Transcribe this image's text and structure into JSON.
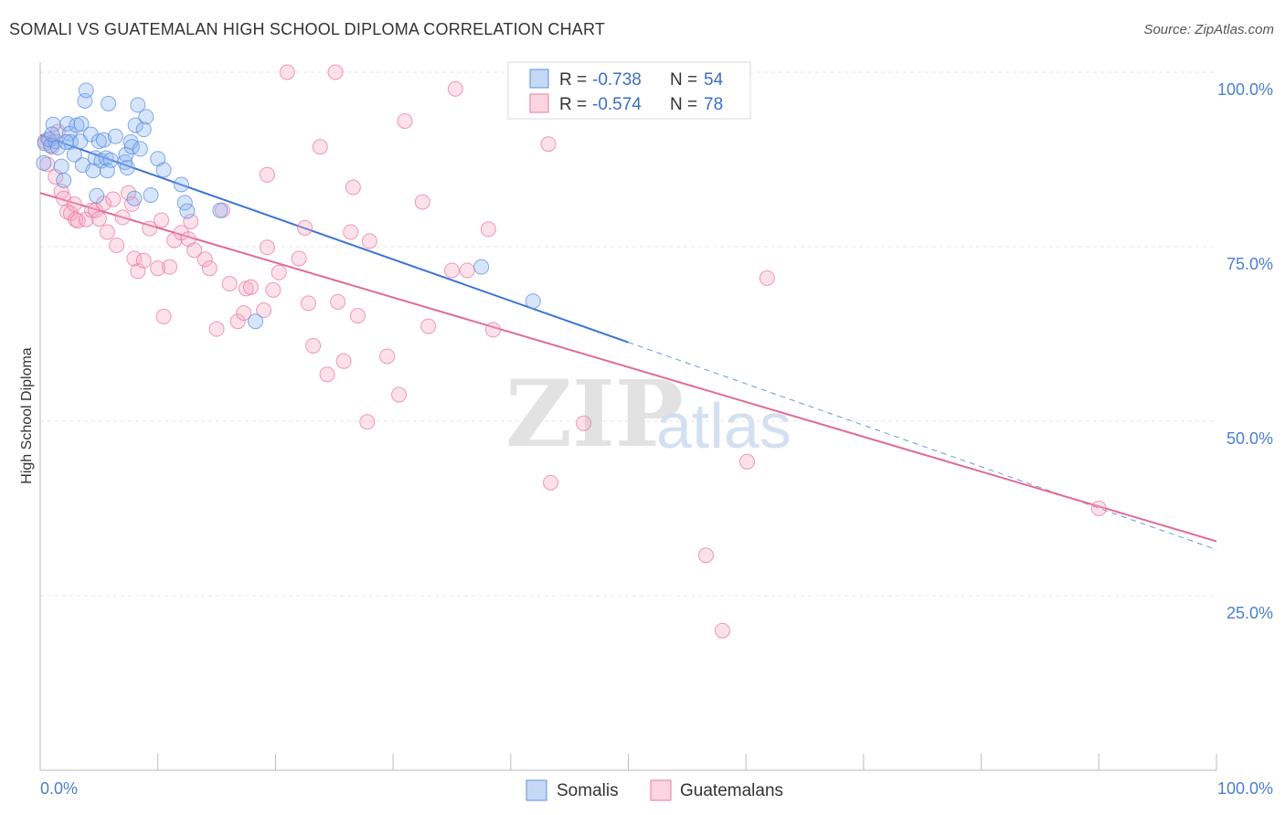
{
  "header": {
    "title": "SOMALI VS GUATEMALAN HIGH SCHOOL DIPLOMA CORRELATION CHART",
    "source": "Source: ZipAtlas.com"
  },
  "watermark": {
    "zip": "ZIP",
    "atlas": "atlas"
  },
  "stats": [
    {
      "r_label": "R = ",
      "r_value": "-0.738",
      "n_label": "N = ",
      "n_value": "54",
      "color": "#5b8fe0"
    },
    {
      "r_label": "R = ",
      "r_value": "-0.574",
      "n_label": "N = ",
      "n_value": "78",
      "color": "#e87aa0"
    }
  ],
  "chart_data": {
    "type": "scatter",
    "title": "SOMALI VS GUATEMALAN HIGH SCHOOL DIPLOMA CORRELATION CHART",
    "xlabel": "",
    "ylabel": "High School Diploma",
    "xlim": [
      0,
      100
    ],
    "ylim": [
      0,
      100
    ],
    "x_tick_labels": [
      "0.0%",
      "100.0%"
    ],
    "y_ticks": [
      25,
      50,
      75,
      100
    ],
    "y_tick_labels": [
      "25.0%",
      "50.0%",
      "75.0%",
      "100.0%"
    ],
    "legend": [
      "Somalis",
      "Guatemalans"
    ],
    "series": [
      {
        "name": "Somalis",
        "color": "#5b8fe0",
        "fill": "rgba(140,180,240,0.35)",
        "trend": {
          "x0": 0,
          "y0": 91.0,
          "x1": 50,
          "y1": 61.3,
          "dash_to_x": 100,
          "dash_to_y": 31.6
        },
        "points": [
          [
            0.4,
            89.8
          ],
          [
            0.7,
            90.4
          ],
          [
            0.9,
            89.5
          ],
          [
            1.1,
            92.5
          ],
          [
            1.3,
            90.1
          ],
          [
            1.5,
            89.2
          ],
          [
            1.8,
            86.5
          ],
          [
            2.0,
            84.5
          ],
          [
            2.3,
            92.6
          ],
          [
            2.5,
            91.2
          ],
          [
            2.6,
            90.0
          ],
          [
            2.9,
            88.2
          ],
          [
            3.1,
            92.4
          ],
          [
            3.4,
            90.1
          ],
          [
            3.5,
            92.6
          ],
          [
            3.6,
            86.7
          ],
          [
            3.8,
            95.9
          ],
          [
            3.9,
            97.4
          ],
          [
            4.3,
            91.1
          ],
          [
            4.5,
            85.9
          ],
          [
            4.7,
            87.7
          ],
          [
            4.8,
            82.3
          ],
          [
            5.0,
            90.1
          ],
          [
            5.2,
            87.3
          ],
          [
            5.4,
            90.3
          ],
          [
            5.6,
            87.7
          ],
          [
            5.7,
            85.9
          ],
          [
            5.8,
            95.5
          ],
          [
            6.0,
            87.4
          ],
          [
            6.4,
            90.8
          ],
          [
            7.2,
            87.1
          ],
          [
            7.3,
            88.2
          ],
          [
            7.4,
            86.3
          ],
          [
            7.7,
            90.0
          ],
          [
            7.8,
            89.3
          ],
          [
            8.0,
            81.9
          ],
          [
            8.1,
            92.4
          ],
          [
            8.3,
            95.3
          ],
          [
            8.5,
            89.0
          ],
          [
            8.8,
            91.8
          ],
          [
            9.0,
            93.6
          ],
          [
            9.4,
            82.4
          ],
          [
            10.0,
            87.6
          ],
          [
            10.5,
            86.0
          ],
          [
            12.0,
            83.9
          ],
          [
            12.3,
            81.3
          ],
          [
            12.5,
            80.1
          ],
          [
            15.3,
            80.2
          ],
          [
            18.3,
            64.3
          ],
          [
            37.5,
            72.1
          ],
          [
            41.9,
            67.2
          ],
          [
            0.3,
            87.0
          ],
          [
            1.0,
            91.1
          ],
          [
            2.2,
            90.0
          ]
        ]
      },
      {
        "name": "Guatemalans",
        "color": "#e87aa0",
        "fill": "rgba(245,170,195,0.35)",
        "trend": {
          "x0": 0,
          "y0": 82.7,
          "x1": 100,
          "y1": 32.8
        },
        "points": [
          [
            0.4,
            90.1
          ],
          [
            0.6,
            86.8
          ],
          [
            0.8,
            90.3
          ],
          [
            1.0,
            89.3
          ],
          [
            1.3,
            85.0
          ],
          [
            1.5,
            91.5
          ],
          [
            1.8,
            82.9
          ],
          [
            2.0,
            81.9
          ],
          [
            2.3,
            80.0
          ],
          [
            2.6,
            79.8
          ],
          [
            2.9,
            81.1
          ],
          [
            3.0,
            78.9
          ],
          [
            3.2,
            78.7
          ],
          [
            3.9,
            78.9
          ],
          [
            4.4,
            80.2
          ],
          [
            4.7,
            80.2
          ],
          [
            5.0,
            79.0
          ],
          [
            5.4,
            81.2
          ],
          [
            5.7,
            77.1
          ],
          [
            6.2,
            81.8
          ],
          [
            6.5,
            75.2
          ],
          [
            7.0,
            79.2
          ],
          [
            7.5,
            82.7
          ],
          [
            7.8,
            81.1
          ],
          [
            8.0,
            73.3
          ],
          [
            8.3,
            71.5
          ],
          [
            8.8,
            73.0
          ],
          [
            9.3,
            77.6
          ],
          [
            10.0,
            71.9
          ],
          [
            10.3,
            78.8
          ],
          [
            10.5,
            65.0
          ],
          [
            11.0,
            72.1
          ],
          [
            11.4,
            75.9
          ],
          [
            12.0,
            77.0
          ],
          [
            12.6,
            76.1
          ],
          [
            12.8,
            78.6
          ],
          [
            13.1,
            74.5
          ],
          [
            14.0,
            73.2
          ],
          [
            14.4,
            71.9
          ],
          [
            15.0,
            63.2
          ],
          [
            15.5,
            80.2
          ],
          [
            16.1,
            69.7
          ],
          [
            16.8,
            64.3
          ],
          [
            17.3,
            65.5
          ],
          [
            17.5,
            69.0
          ],
          [
            17.9,
            69.2
          ],
          [
            19.0,
            65.9
          ],
          [
            19.3,
            74.9
          ],
          [
            19.3,
            85.3
          ],
          [
            19.8,
            68.8
          ],
          [
            20.3,
            71.3
          ],
          [
            21.0,
            100.0
          ],
          [
            22.0,
            73.3
          ],
          [
            22.5,
            77.7
          ],
          [
            22.8,
            66.9
          ],
          [
            23.2,
            60.8
          ],
          [
            23.8,
            89.3
          ],
          [
            24.4,
            56.7
          ],
          [
            25.1,
            100.0
          ],
          [
            25.3,
            67.1
          ],
          [
            25.8,
            58.6
          ],
          [
            26.4,
            77.1
          ],
          [
            26.6,
            83.5
          ],
          [
            27.0,
            65.1
          ],
          [
            27.8,
            49.9
          ],
          [
            28.0,
            75.8
          ],
          [
            29.5,
            59.3
          ],
          [
            30.5,
            53.8
          ],
          [
            31.0,
            93.0
          ],
          [
            32.5,
            81.4
          ],
          [
            33.0,
            63.6
          ],
          [
            35.0,
            71.6
          ],
          [
            35.3,
            97.6
          ],
          [
            38.1,
            77.5
          ],
          [
            38.5,
            63.1
          ],
          [
            43.2,
            89.7
          ],
          [
            43.4,
            41.2
          ],
          [
            46.2,
            49.7
          ]
        ],
        "extra_points": [
          [
            36.3,
            71.6
          ],
          [
            56.6,
            30.8
          ],
          [
            58.0,
            20.0
          ],
          [
            60.1,
            44.2
          ],
          [
            61.8,
            70.5
          ],
          [
            90.0,
            37.5
          ]
        ]
      }
    ]
  },
  "legend": {
    "items": [
      "Somalis",
      "Guatemalans"
    ]
  }
}
